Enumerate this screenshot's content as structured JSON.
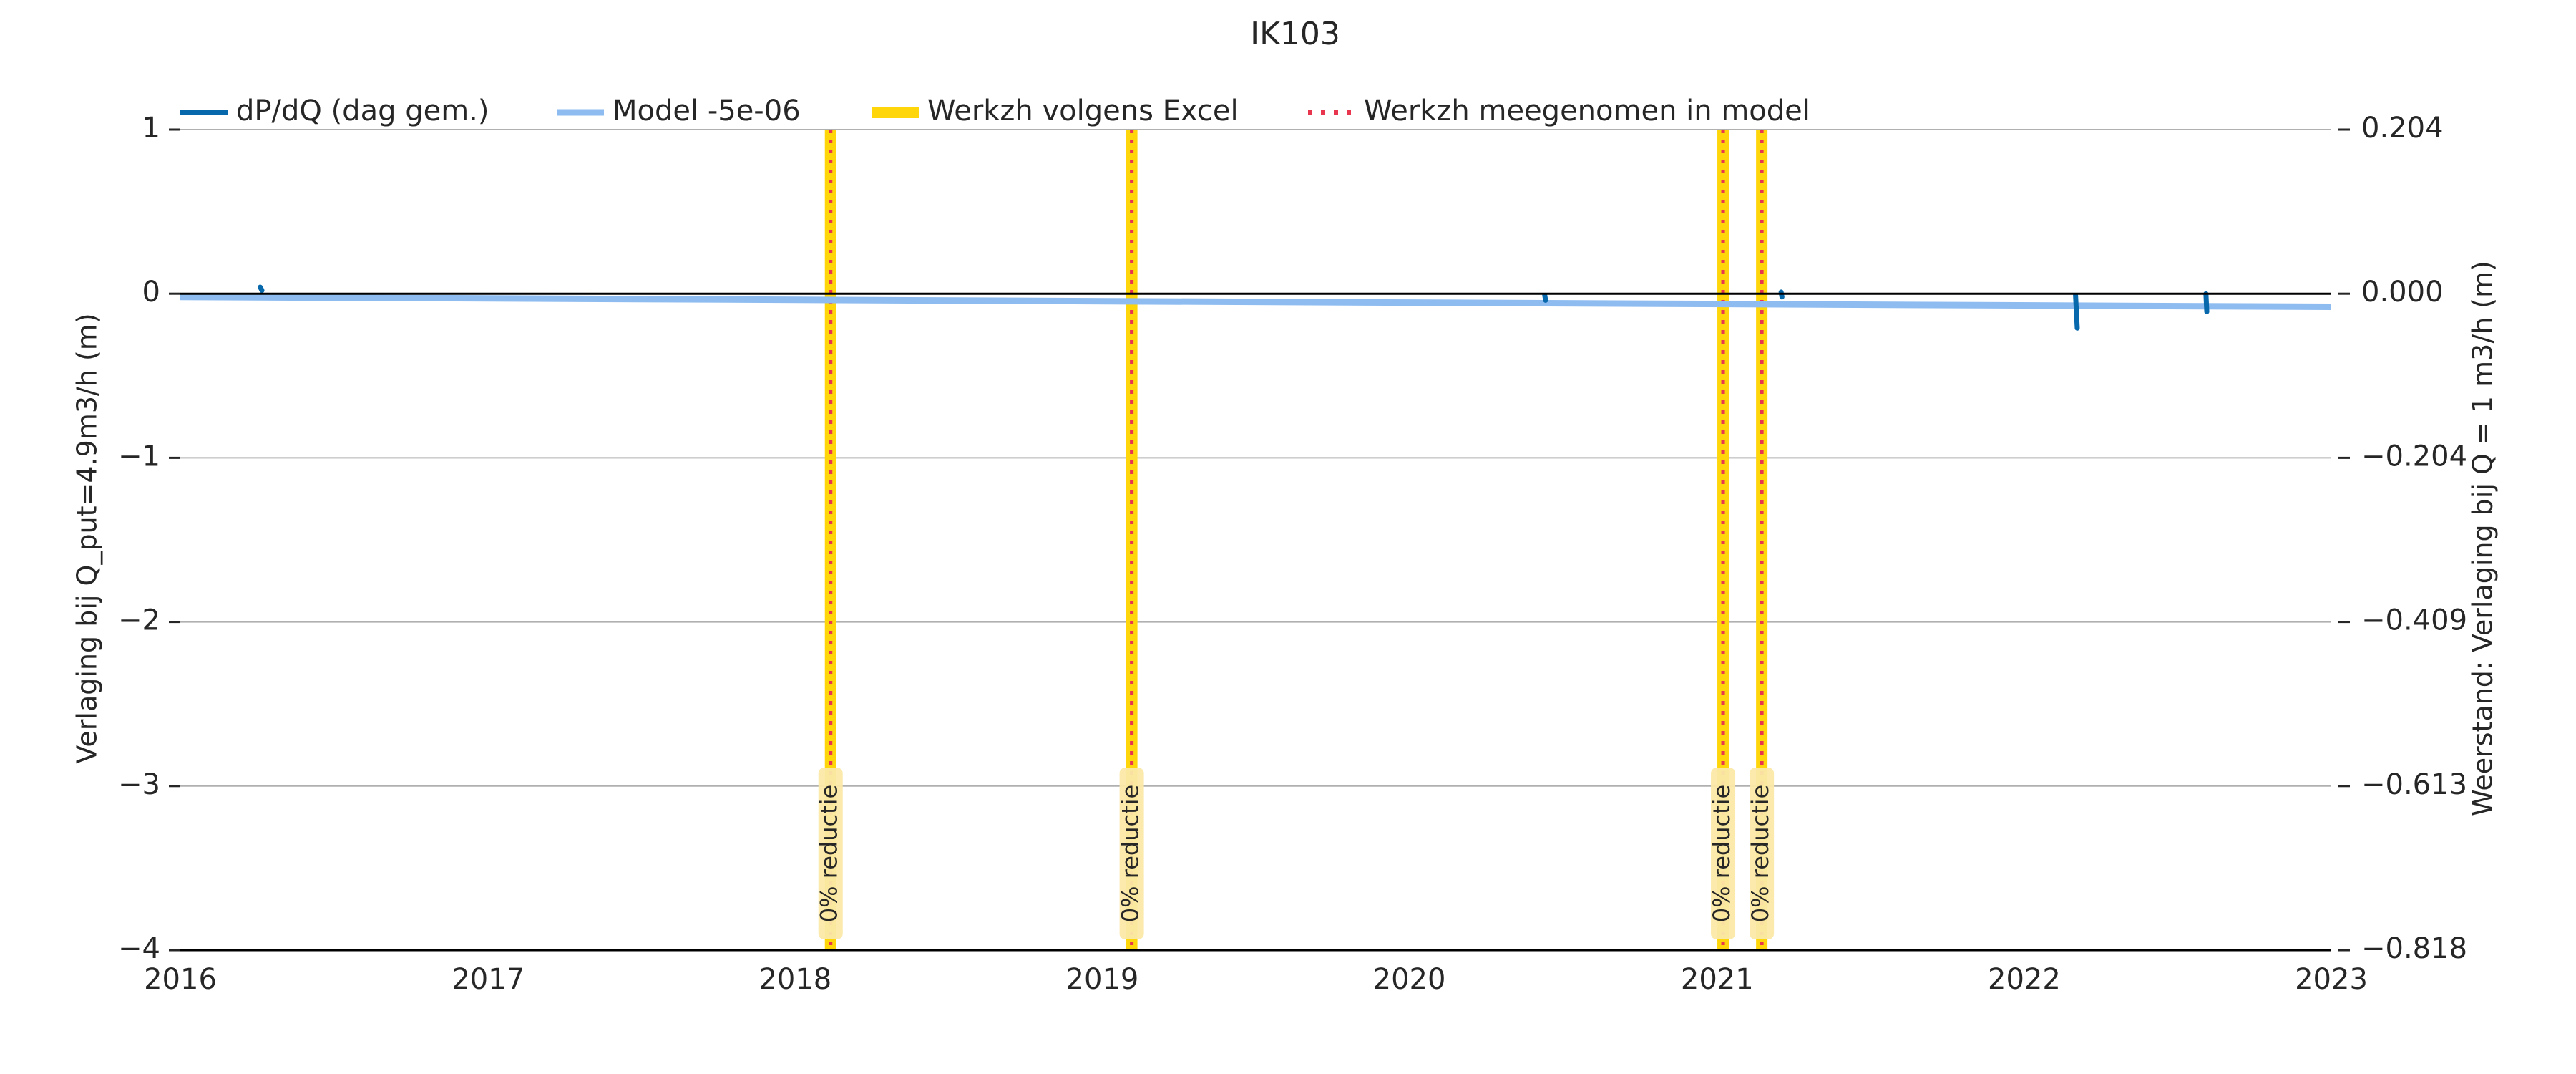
{
  "chart_data": {
    "type": "line",
    "title": "IK103",
    "ylabel_left": "Verlaging bij Q_put=4.9m3/h (m)",
    "ylabel_right": "Weerstand: Verlaging bij Q = 1 m3/h (m)",
    "xlim": [
      "2016-01-01",
      "2023-01-01"
    ],
    "ylim_left": [
      -4,
      1
    ],
    "ylim_right": [
      -0.818,
      0.204
    ],
    "x_ticks": [
      "2016",
      "2017",
      "2018",
      "2019",
      "2020",
      "2021",
      "2022",
      "2023"
    ],
    "y_ticks_left": [
      "1",
      "0",
      "−1",
      "−2",
      "−3",
      "−4"
    ],
    "y_ticks_right": [
      "0.204",
      "0.000",
      "−0.204",
      "−0.409",
      "−0.613",
      "−0.818"
    ],
    "grid": "horizontal",
    "legend_position": "top",
    "legend": [
      {
        "label": "dP/dQ (dag gem.)",
        "color": "#0868ac",
        "style": "solid-thick"
      },
      {
        "label": "Model -5e-06",
        "color": "#8ebcf0",
        "style": "solid"
      },
      {
        "label": "Werkzh volgens Excel",
        "color": "#ffd60a",
        "style": "solid-wide"
      },
      {
        "label": "Werkzh meegenomen in model",
        "color": "#e8364f",
        "style": "dotted"
      }
    ],
    "series": [
      {
        "name": "Model -5e-06",
        "color": "#8ebcf0",
        "x": [
          "2016-01-01",
          "2023-01-01"
        ],
        "y": [
          -0.02,
          -0.08
        ]
      },
      {
        "name": "dP/dQ (dag gem.)",
        "color": "#0868ac",
        "segments": [
          {
            "x": [
              "2016-04-05",
              "2016-04-07"
            ],
            "y": [
              0.04,
              0.02
            ]
          },
          {
            "x": [
              "2020-06-10",
              "2020-06-11"
            ],
            "y": [
              -0.01,
              -0.04
            ]
          },
          {
            "x": [
              "2021-03-18",
              "2021-03-19"
            ],
            "y": [
              0.01,
              -0.02
            ]
          },
          {
            "x": [
              "2022-03-03",
              "2022-03-05"
            ],
            "y": [
              -0.01,
              -0.21
            ]
          },
          {
            "x": [
              "2022-08-05",
              "2022-08-06"
            ],
            "y": [
              0.0,
              -0.11
            ]
          }
        ]
      }
    ],
    "events": [
      {
        "date": "2018-02-12",
        "label": "0% reductie"
      },
      {
        "date": "2019-02-05",
        "label": "0% reductie"
      },
      {
        "date": "2021-01-08",
        "label": "0% reductie"
      },
      {
        "date": "2021-02-23",
        "label": "0% reductie"
      }
    ],
    "colors": {
      "band": "#ffd60a",
      "band_label_bg": "#fbe9a8",
      "dotted": "#e8364f",
      "grid": "#b0b0b0",
      "axis": "#000000"
    }
  }
}
